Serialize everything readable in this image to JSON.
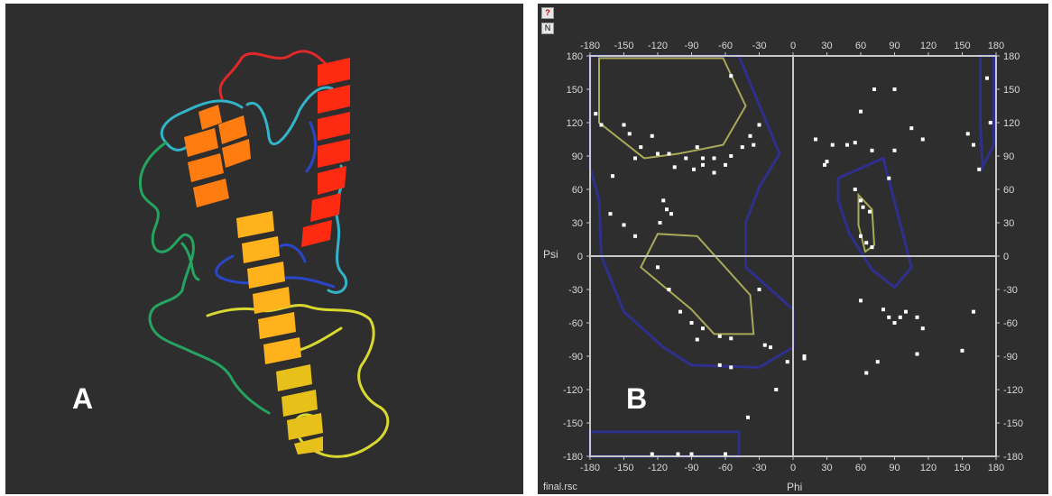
{
  "panels": {
    "a": {
      "label": "A"
    },
    "b": {
      "label": "B"
    }
  },
  "toolbar": {
    "help_label": "?",
    "n_label": "N"
  },
  "footer": {
    "text": "final.rsc"
  },
  "colors": {
    "background": "#2e2e2e",
    "axis": "#c8c8c8",
    "favored_region": "#a9a95a",
    "allowed_region": "#2f2f8c",
    "point": "#ffffff",
    "helix_colors": [
      "#ff2a12",
      "#ff7d10",
      "#ffb21c",
      "#e7c11a"
    ],
    "coil_colors": [
      "#e02828",
      "#33b3c8",
      "#25a460",
      "#2a46c8",
      "#d8d830"
    ]
  },
  "chart_data": {
    "type": "scatter",
    "title": "",
    "xlabel": "Phi",
    "ylabel": "Psi",
    "xlim": [
      -180,
      180
    ],
    "ylim": [
      -180,
      180
    ],
    "x_ticks": [
      -180,
      -150,
      -120,
      -90,
      -60,
      -30,
      0,
      30,
      60,
      90,
      120,
      150,
      180
    ],
    "y_ticks": [
      180,
      150,
      120,
      90,
      60,
      30,
      0,
      -30,
      -60,
      -90,
      -120,
      -150,
      -180
    ],
    "favored_regions": [
      [
        [
          -172,
          178
        ],
        [
          -62,
          178
        ],
        [
          -42,
          135
        ],
        [
          -62,
          100
        ],
        [
          -102,
          92
        ],
        [
          -132,
          88
        ],
        [
          -172,
          120
        ]
      ],
      [
        [
          -135,
          -10
        ],
        [
          -90,
          -48
        ],
        [
          -70,
          -70
        ],
        [
          -35,
          -70
        ],
        [
          -38,
          -35
        ],
        [
          -85,
          18
        ],
        [
          -120,
          20
        ]
      ],
      [
        [
          58,
          55
        ],
        [
          70,
          42
        ],
        [
          72,
          10
        ],
        [
          64,
          4
        ],
        [
          58,
          28
        ]
      ]
    ],
    "allowed_regions": [
      [
        [
          -180,
          180
        ],
        [
          -48,
          180
        ],
        [
          -12,
          92
        ],
        [
          -30,
          62
        ],
        [
          -42,
          30
        ],
        [
          -42,
          -10
        ],
        [
          0,
          -48
        ],
        [
          0,
          -82
        ],
        [
          -30,
          -100
        ],
        [
          -90,
          -98
        ],
        [
          -115,
          -82
        ],
        [
          -150,
          -50
        ],
        [
          -170,
          0
        ],
        [
          -172,
          50
        ],
        [
          -180,
          80
        ]
      ],
      [
        [
          40,
          70
        ],
        [
          80,
          88
        ],
        [
          105,
          -10
        ],
        [
          90,
          -28
        ],
        [
          70,
          -12
        ],
        [
          50,
          20
        ],
        [
          40,
          50
        ]
      ],
      [
        [
          166,
          180
        ],
        [
          178,
          180
        ],
        [
          178,
          100
        ],
        [
          168,
          80
        ],
        [
          166,
          120
        ]
      ],
      [
        [
          -180,
          -158
        ],
        [
          -48,
          -158
        ],
        [
          -48,
          -180
        ],
        [
          -180,
          -180
        ]
      ]
    ],
    "points": [
      [
        -175,
        128
      ],
      [
        -170,
        118
      ],
      [
        -150,
        118
      ],
      [
        -145,
        110
      ],
      [
        -135,
        98
      ],
      [
        -140,
        88
      ],
      [
        -120,
        92
      ],
      [
        -110,
        92
      ],
      [
        -95,
        88
      ],
      [
        -85,
        98
      ],
      [
        -80,
        88
      ],
      [
        -70,
        88
      ],
      [
        -55,
        90
      ],
      [
        -45,
        98
      ],
      [
        -35,
        100
      ],
      [
        -30,
        118
      ],
      [
        -38,
        108
      ],
      [
        -55,
        162
      ],
      [
        -105,
        80
      ],
      [
        -88,
        78
      ],
      [
        -80,
        82
      ],
      [
        -70,
        75
      ],
      [
        -60,
        82
      ],
      [
        -115,
        50
      ],
      [
        -112,
        42
      ],
      [
        -108,
        38
      ],
      [
        -118,
        30
      ],
      [
        -160,
        72
      ],
      [
        -162,
        38
      ],
      [
        -150,
        28
      ],
      [
        -140,
        18
      ],
      [
        -120,
        -10
      ],
      [
        -110,
        -30
      ],
      [
        -100,
        -50
      ],
      [
        -90,
        -60
      ],
      [
        -80,
        -65
      ],
      [
        -65,
        -72
      ],
      [
        -55,
        -74
      ],
      [
        -25,
        -80
      ],
      [
        -20,
        -82
      ],
      [
        -30,
        -30
      ],
      [
        -65,
        -98
      ],
      [
        -55,
        -100
      ],
      [
        -85,
        -75
      ],
      [
        -40,
        -145
      ],
      [
        -15,
        -120
      ],
      [
        -125,
        -178
      ],
      [
        -102,
        -178
      ],
      [
        -90,
        -178
      ],
      [
        -60,
        -178
      ],
      [
        -125,
        108
      ],
      [
        10,
        -92
      ],
      [
        20,
        105
      ],
      [
        35,
        100
      ],
      [
        48,
        100
      ],
      [
        55,
        102
      ],
      [
        70,
        95
      ],
      [
        90,
        95
      ],
      [
        30,
        85
      ],
      [
        28,
        82
      ],
      [
        55,
        60
      ],
      [
        60,
        50
      ],
      [
        62,
        44
      ],
      [
        68,
        40
      ],
      [
        60,
        18
      ],
      [
        65,
        12
      ],
      [
        70,
        8
      ],
      [
        85,
        70
      ],
      [
        60,
        130
      ],
      [
        72,
        150
      ],
      [
        90,
        150
      ],
      [
        105,
        115
      ],
      [
        115,
        105
      ],
      [
        155,
        110
      ],
      [
        160,
        100
      ],
      [
        165,
        78
      ],
      [
        172,
        160
      ],
      [
        175,
        120
      ],
      [
        60,
        -40
      ],
      [
        80,
        -48
      ],
      [
        85,
        -55
      ],
      [
        90,
        -60
      ],
      [
        95,
        -55
      ],
      [
        100,
        -50
      ],
      [
        110,
        -55
      ],
      [
        115,
        -65
      ],
      [
        150,
        -85
      ],
      [
        160,
        -50
      ],
      [
        75,
        -95
      ],
      [
        65,
        -105
      ],
      [
        110,
        -88
      ],
      [
        -5,
        -95
      ],
      [
        10,
        -90
      ]
    ]
  }
}
